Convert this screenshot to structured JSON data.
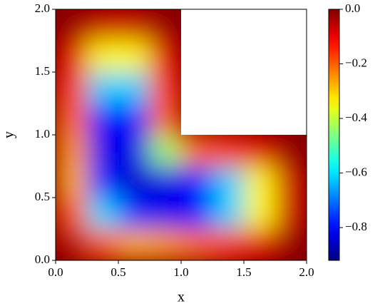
{
  "chart_data": {
    "type": "heatmap",
    "xlabel": "x",
    "ylabel": "y",
    "x": [
      0.125,
      0.375,
      0.625,
      0.875,
      1.125,
      1.375,
      1.625,
      1.875
    ],
    "y": [
      0.125,
      0.375,
      0.625,
      0.875,
      1.125,
      1.375,
      1.625,
      1.875
    ],
    "values": [
      [
        -0.05,
        -0.19,
        -0.27,
        -0.25,
        -0.21,
        -0.16,
        -0.09,
        -0.02
      ],
      [
        -0.19,
        -0.61,
        -0.77,
        -0.82,
        -0.79,
        -0.62,
        -0.34,
        -0.07
      ],
      [
        -0.27,
        -0.77,
        -0.85,
        -0.83,
        -0.79,
        -0.62,
        -0.34,
        -0.07
      ],
      [
        -0.25,
        -0.82,
        -0.83,
        -0.44,
        -0.21,
        -0.16,
        -0.09,
        -0.02
      ],
      [
        -0.21,
        -0.79,
        -0.79,
        -0.21,
        null,
        null,
        null,
        null
      ],
      [
        -0.16,
        -0.62,
        -0.62,
        -0.16,
        null,
        null,
        null,
        null
      ],
      [
        -0.09,
        -0.34,
        -0.34,
        -0.09,
        null,
        null,
        null,
        null
      ],
      [
        -0.02,
        -0.07,
        -0.07,
        -0.02,
        null,
        null,
        null,
        null
      ]
    ],
    "colormap": "jet",
    "xlim": [
      0,
      2
    ],
    "ylim": [
      0,
      2
    ],
    "xticks": [
      {
        "value": 0,
        "label": "0.0"
      },
      0.5,
      {
        "value": 1,
        "label": "1.0"
      },
      1.5,
      {
        "value": 2,
        "label": "2.0"
      }
    ],
    "yticks": [
      {
        "value": 0,
        "label": "0.0"
      },
      0.5,
      {
        "value": 1,
        "label": "1.0"
      },
      1.5,
      {
        "value": 2,
        "label": "2.0"
      }
    ],
    "clim": [
      -0.92,
      0
    ],
    "cticks": [
      {
        "value": 0,
        "label": "0.0"
      },
      {
        "value": -0.2,
        "label": "−0.2"
      },
      {
        "value": -0.4,
        "label": "−0.4"
      },
      {
        "value": -0.6,
        "label": "−0.6"
      },
      {
        "value": -0.8,
        "label": "−0.8"
      }
    ]
  }
}
